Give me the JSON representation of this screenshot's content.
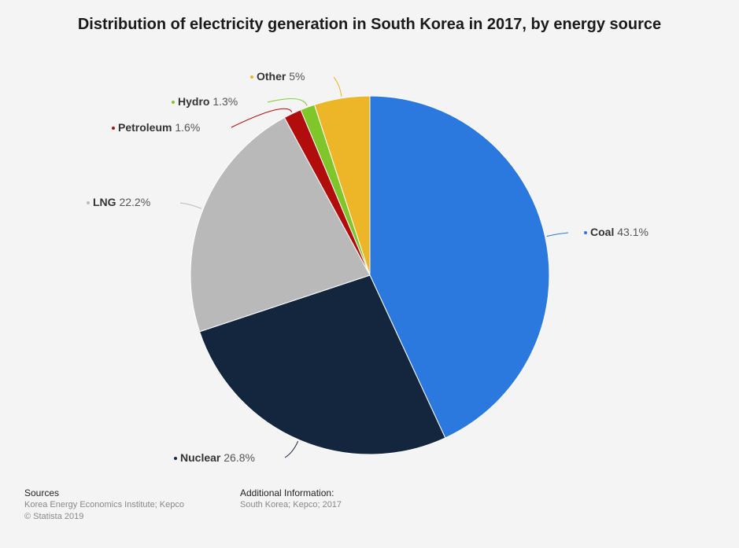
{
  "title": "Distribution of electricity generation in South Korea in 2017, by energy source",
  "chart_data": {
    "type": "pie",
    "title": "Distribution of electricity generation in South Korea in 2017, by energy source",
    "slices": [
      {
        "name": "Coal",
        "value": 43.1,
        "label": "43.1%",
        "color": "#2b78de"
      },
      {
        "name": "Nuclear",
        "value": 26.8,
        "label": "26.8%",
        "color": "#13263e"
      },
      {
        "name": "LNG",
        "value": 22.2,
        "label": "22.2%",
        "color": "#b9b9b9"
      },
      {
        "name": "Petroleum",
        "value": 1.6,
        "label": "1.6%",
        "color": "#b10d0d"
      },
      {
        "name": "Hydro",
        "value": 1.3,
        "label": "1.3%",
        "color": "#7fc62b"
      },
      {
        "name": "Other",
        "value": 5,
        "label": "5%",
        "color": "#ecb628"
      }
    ]
  },
  "footer": {
    "sources_heading": "Sources",
    "sources_text": "Korea Energy Economics Institute; Kepco",
    "copyright": "© Statista 2019",
    "additional_heading": "Additional Information:",
    "additional_text": "South Korea; Kepco; 2017"
  }
}
